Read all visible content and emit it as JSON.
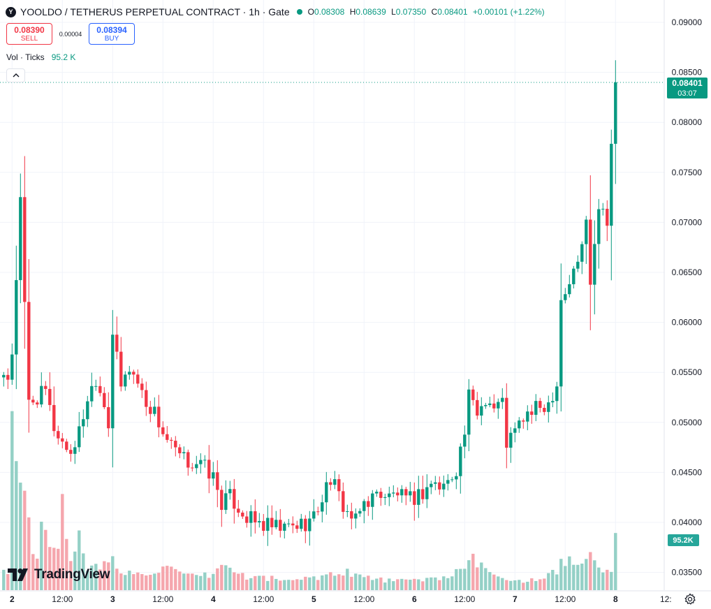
{
  "header": {
    "logo_text": "Y",
    "title": "YOOLDO / TETHERUS PERPETUAL CONTRACT · 1h · Gate",
    "ohlc": {
      "o_label": "O",
      "o": "0.08308",
      "h_label": "H",
      "h": "0.08639",
      "l_label": "L",
      "l": "0.07350",
      "c_label": "C",
      "c": "0.08401",
      "change": "+0.00101 (+1.22%)"
    }
  },
  "trade": {
    "sell_price": "0.08390",
    "sell_label": "SELL",
    "spread": "0.00004",
    "buy_price": "0.08394",
    "buy_label": "BUY"
  },
  "volume_legend": {
    "label": "Vol · Ticks",
    "value": "95.2 K"
  },
  "branding": {
    "wordmark": "TradingView"
  },
  "colors": {
    "up": "#089981",
    "down": "#f23645",
    "vol_up": "#94d0c6",
    "vol_down": "#f5a6ad",
    "grid": "#f0f3fa"
  },
  "icons": [
    "collapse-chevron-icon",
    "tradingview-logo-icon",
    "settings-gear-icon"
  ],
  "chart_data": {
    "type": "candlestick",
    "symbol": "YOOLDO / TETHERUS PERPETUAL CONTRACT",
    "interval": "1h",
    "exchange": "Gate",
    "y_ticks": [
      "0.09000",
      "0.08500",
      "0.08000",
      "0.07500",
      "0.07000",
      "0.06500",
      "0.06000",
      "0.05500",
      "0.05000",
      "0.04500",
      "0.04000",
      "0.03500"
    ],
    "x_ticks": [
      {
        "label": "2",
        "hour": 0
      },
      {
        "label": "12:00",
        "hour": 12
      },
      {
        "label": "3",
        "hour": 24
      },
      {
        "label": "12:00",
        "hour": 36
      },
      {
        "label": "4",
        "hour": 48
      },
      {
        "label": "12:00",
        "hour": 60
      },
      {
        "label": "5",
        "hour": 72
      },
      {
        "label": "12:00",
        "hour": 84
      },
      {
        "label": "6",
        "hour": 96
      },
      {
        "label": "12:00",
        "hour": 108
      },
      {
        "label": "7",
        "hour": 120
      },
      {
        "label": "12:00",
        "hour": 132
      },
      {
        "label": "8",
        "hour": 144
      },
      {
        "label": "12:",
        "hour": 156
      }
    ],
    "last_price": "0.08401",
    "countdown": "03:07",
    "last_volume_label": "95.2K",
    "anchor_points": [
      [
        -3,
        0.0545
      ],
      [
        -1,
        0.0535
      ],
      [
        0,
        0.057
      ],
      [
        2,
        0.072
      ],
      [
        3,
        0.0615
      ],
      [
        4,
        0.052
      ],
      [
        6,
        0.0525
      ],
      [
        8,
        0.053
      ],
      [
        10,
        0.0495
      ],
      [
        12,
        0.048
      ],
      [
        14,
        0.047
      ],
      [
        16,
        0.049
      ],
      [
        18,
        0.0525
      ],
      [
        20,
        0.0545
      ],
      [
        22,
        0.052
      ],
      [
        23,
        0.05
      ],
      [
        24,
        0.059
      ],
      [
        26,
        0.0535
      ],
      [
        28,
        0.0555
      ],
      [
        30,
        0.054
      ],
      [
        32,
        0.052
      ],
      [
        34,
        0.051
      ],
      [
        36,
        0.049
      ],
      [
        38,
        0.0475
      ],
      [
        40,
        0.0465
      ],
      [
        42,
        0.046
      ],
      [
        44,
        0.046
      ],
      [
        46,
        0.0455
      ],
      [
        48,
        0.0445
      ],
      [
        50,
        0.042
      ],
      [
        52,
        0.0425
      ],
      [
        54,
        0.0415
      ],
      [
        56,
        0.0405
      ],
      [
        58,
        0.04
      ],
      [
        60,
        0.0397
      ],
      [
        62,
        0.0395
      ],
      [
        64,
        0.0393
      ],
      [
        66,
        0.0395
      ],
      [
        68,
        0.0397
      ],
      [
        70,
        0.04
      ],
      [
        72,
        0.0405
      ],
      [
        74,
        0.0425
      ],
      [
        76,
        0.0445
      ],
      [
        78,
        0.0425
      ],
      [
        80,
        0.041
      ],
      [
        82,
        0.04
      ],
      [
        84,
        0.042
      ],
      [
        86,
        0.0425
      ],
      [
        88,
        0.043
      ],
      [
        90,
        0.0425
      ],
      [
        92,
        0.043
      ],
      [
        94,
        0.042
      ],
      [
        96,
        0.0425
      ],
      [
        98,
        0.043
      ],
      [
        100,
        0.044
      ],
      [
        102,
        0.0435
      ],
      [
        104,
        0.044
      ],
      [
        106,
        0.0455
      ],
      [
        108,
        0.049
      ],
      [
        109,
        0.0525
      ],
      [
        111,
        0.051
      ],
      [
        113,
        0.0525
      ],
      [
        115,
        0.0515
      ],
      [
        117,
        0.052
      ],
      [
        118,
        0.048
      ],
      [
        120,
        0.049
      ],
      [
        122,
        0.0505
      ],
      [
        124,
        0.051
      ],
      [
        126,
        0.0515
      ],
      [
        128,
        0.052
      ],
      [
        130,
        0.054
      ],
      [
        131,
        0.0625
      ],
      [
        132,
        0.063
      ],
      [
        133,
        0.064
      ],
      [
        135,
        0.066
      ],
      [
        137,
        0.07
      ],
      [
        138,
        0.0645
      ],
      [
        140,
        0.072
      ],
      [
        142,
        0.0705
      ],
      [
        143,
        0.078
      ],
      [
        144,
        0.084
      ]
    ],
    "volume_anchors": [
      [
        -3,
        0.1
      ],
      [
        -1,
        0.05
      ],
      [
        0,
        0.53
      ],
      [
        1,
        0.38
      ],
      [
        2,
        0.37
      ],
      [
        3,
        0.3
      ],
      [
        4,
        0.22
      ],
      [
        6,
        0.08
      ],
      [
        7,
        0.2
      ],
      [
        9,
        0.14
      ],
      [
        11,
        0.16
      ],
      [
        12,
        0.28
      ],
      [
        14,
        0.12
      ],
      [
        16,
        0.16
      ],
      [
        18,
        0.06
      ],
      [
        22,
        0.08
      ],
      [
        24,
        0.09
      ],
      [
        26,
        0.06
      ],
      [
        30,
        0.05
      ],
      [
        36,
        0.07
      ],
      [
        40,
        0.05
      ],
      [
        44,
        0.04
      ],
      [
        48,
        0.05
      ],
      [
        50,
        0.08
      ],
      [
        56,
        0.04
      ],
      [
        60,
        0.04
      ],
      [
        66,
        0.03
      ],
      [
        72,
        0.04
      ],
      [
        76,
        0.05
      ],
      [
        80,
        0.06
      ],
      [
        84,
        0.04
      ],
      [
        90,
        0.03
      ],
      [
        96,
        0.03
      ],
      [
        102,
        0.04
      ],
      [
        108,
        0.06
      ],
      [
        110,
        0.1
      ],
      [
        112,
        0.07
      ],
      [
        116,
        0.05
      ],
      [
        120,
        0.03
      ],
      [
        126,
        0.03
      ],
      [
        130,
        0.06
      ],
      [
        132,
        0.1
      ],
      [
        134,
        0.07
      ],
      [
        136,
        0.08
      ],
      [
        138,
        0.12
      ],
      [
        140,
        0.06
      ],
      [
        142,
        0.07
      ],
      [
        143,
        0.05
      ],
      [
        144,
        0.2
      ]
    ]
  }
}
